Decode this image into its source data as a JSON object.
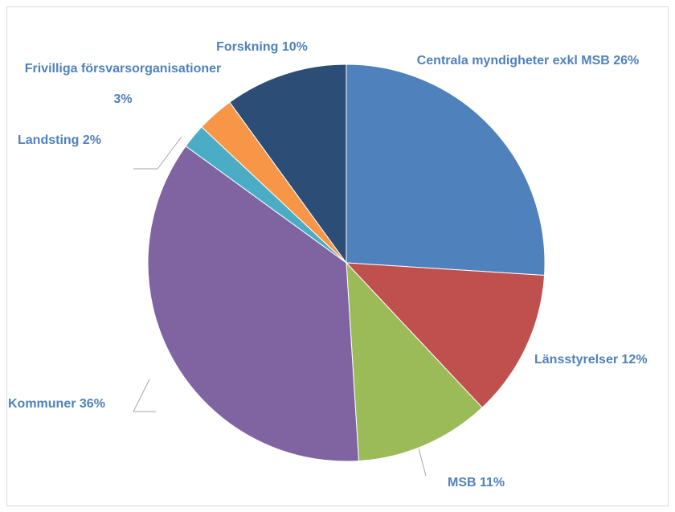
{
  "chart_data": {
    "type": "pie",
    "categories": [
      "Centrala myndigheter exkl MSB",
      "Länsstyrelser",
      "MSB",
      "Kommuner",
      "Landsting",
      "Frivilliga försvarsorganisationer",
      "Forskning"
    ],
    "values": [
      26,
      12,
      11,
      36,
      2,
      3,
      10
    ],
    "value_labels": [
      "26%",
      "12%",
      "11%",
      "36%",
      "2%",
      "3%",
      "10%"
    ],
    "colors": [
      "#4f81bd",
      "#c0504d",
      "#9bbb59",
      "#8064a2",
      "#4bacc6",
      "#f79646",
      "#2c4d75"
    ]
  }
}
